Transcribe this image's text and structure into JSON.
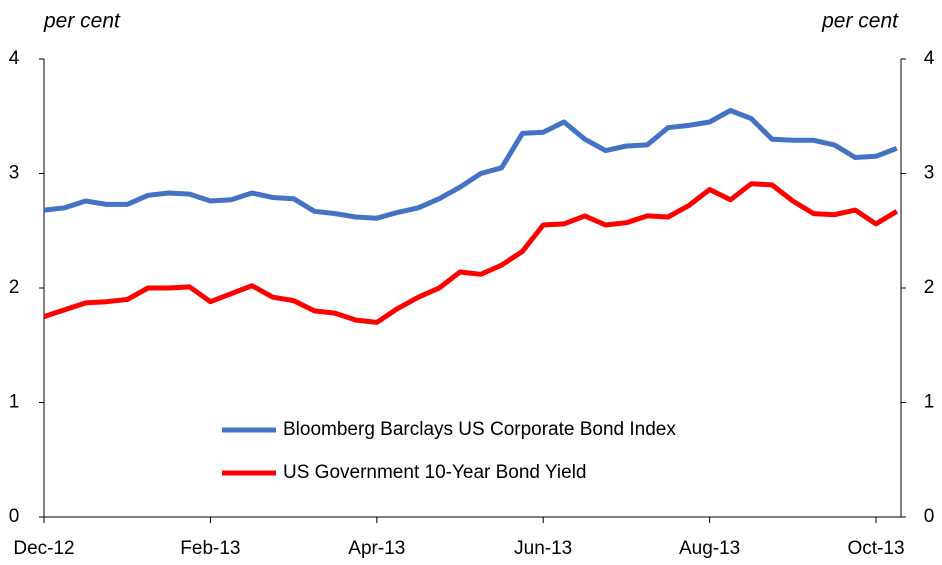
{
  "chart_data": {
    "type": "line",
    "y_label": "per cent",
    "y2_label": "per cent",
    "x": [
      0,
      0.25,
      0.5,
      0.75,
      1,
      1.25,
      1.5,
      1.75,
      2,
      2.25,
      2.5,
      2.75,
      3,
      3.25,
      3.5,
      3.75,
      4,
      4.25,
      4.5,
      4.75,
      5,
      5.25,
      5.5,
      5.75,
      6,
      6.25,
      6.5,
      6.75,
      7,
      7.25,
      7.5,
      7.75,
      8,
      8.25,
      8.5,
      8.75,
      9,
      9.25,
      9.5,
      9.75,
      10,
      10.25
    ],
    "xlim": [
      0,
      10.3
    ],
    "xticks": [
      {
        "value": 0,
        "label": "Dec-12"
      },
      {
        "value": 2,
        "label": "Feb-13"
      },
      {
        "value": 4,
        "label": "Apr-13"
      },
      {
        "value": 6,
        "label": "Jun-13"
      },
      {
        "value": 8,
        "label": "Aug-13"
      },
      {
        "value": 10,
        "label": "Oct-13"
      }
    ],
    "ylim": [
      0,
      4
    ],
    "yticks": [
      0,
      1,
      2,
      3,
      4
    ],
    "y2lim": [
      0,
      4
    ],
    "y2ticks": [
      0,
      1,
      2,
      3,
      4
    ],
    "legend": "lower-center",
    "series": [
      {
        "name": "Bloomberg Barclays US Corporate Bond Index",
        "color": "#4472c4",
        "values": [
          2.68,
          2.7,
          2.76,
          2.73,
          2.73,
          2.81,
          2.83,
          2.82,
          2.76,
          2.77,
          2.83,
          2.79,
          2.78,
          2.67,
          2.65,
          2.62,
          2.61,
          2.66,
          2.7,
          2.78,
          2.88,
          3.0,
          3.05,
          3.35,
          3.36,
          3.45,
          3.3,
          3.2,
          3.24,
          3.25,
          3.4,
          3.42,
          3.45,
          3.55,
          3.48,
          3.3,
          3.29,
          3.29,
          3.25,
          3.14,
          3.15,
          3.22
        ]
      },
      {
        "name": "US Government 10-Year Bond Yield",
        "color": "#ff0000",
        "values": [
          1.75,
          1.81,
          1.87,
          1.88,
          1.9,
          2.0,
          2.0,
          2.01,
          1.88,
          1.95,
          2.02,
          1.92,
          1.89,
          1.8,
          1.78,
          1.72,
          1.7,
          1.82,
          1.92,
          2.0,
          2.14,
          2.12,
          2.2,
          2.32,
          2.55,
          2.56,
          2.63,
          2.55,
          2.57,
          2.63,
          2.62,
          2.72,
          2.86,
          2.77,
          2.91,
          2.9,
          2.76,
          2.65,
          2.64,
          2.68,
          2.56,
          2.67
        ]
      }
    ]
  }
}
